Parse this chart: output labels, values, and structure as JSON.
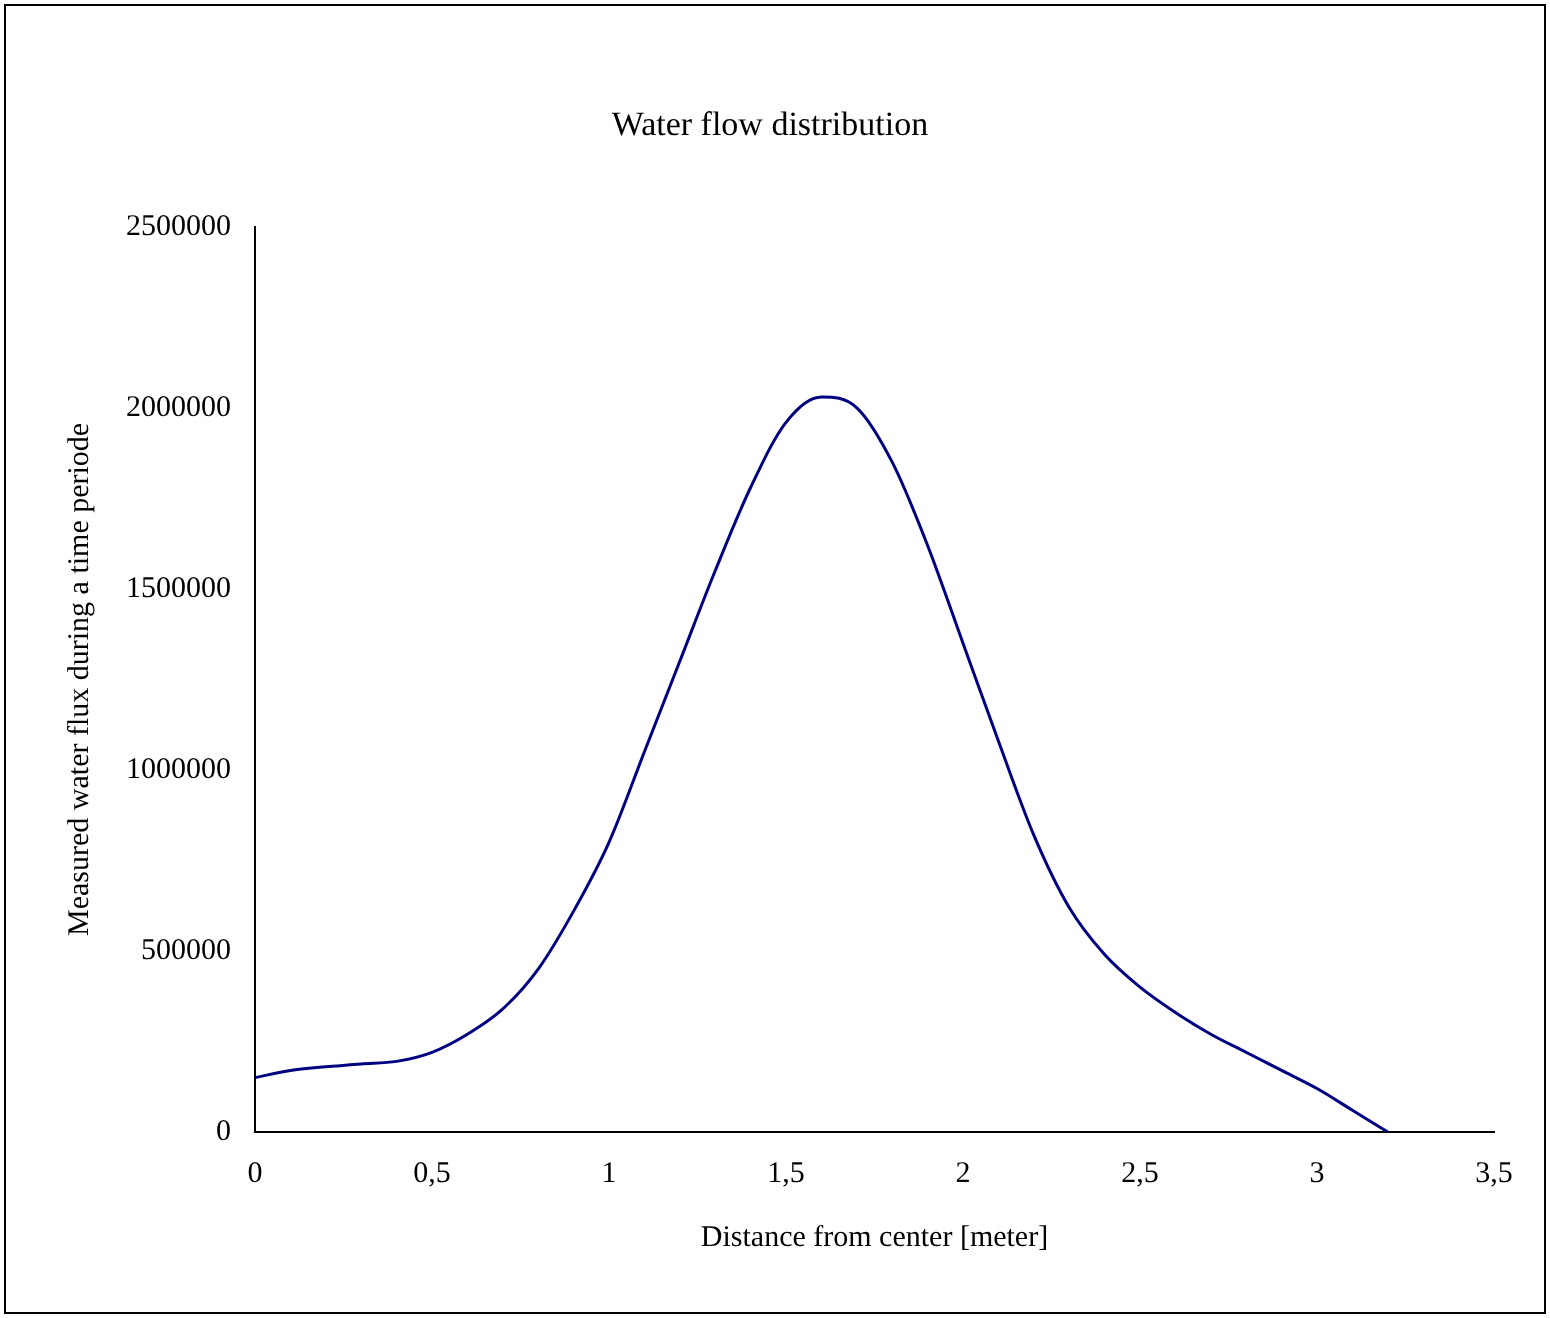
{
  "chart_data": {
    "type": "line",
    "title": "Water flow distribution",
    "xlabel": "Distance from center [meter]",
    "ylabel": "Measured water flux during a time periode",
    "x": [
      0,
      0.1,
      0.2,
      0.3,
      0.4,
      0.5,
      0.6,
      0.7,
      0.8,
      0.9,
      1.0,
      1.1,
      1.2,
      1.3,
      1.4,
      1.5,
      1.6,
      1.7,
      1.8,
      1.9,
      2.0,
      2.1,
      2.2,
      2.3,
      2.4,
      2.5,
      2.6,
      2.7,
      2.8,
      2.9,
      3.0,
      3.1,
      3.2
    ],
    "series": [
      {
        "color": "#000080",
        "values": [
          150000,
          170000,
          180000,
          188000,
          195000,
          220000,
          270000,
          340000,
          450000,
          610000,
          800000,
          1050000,
          1300000,
          1550000,
          1780000,
          1960000,
          2030000,
          2000000,
          1850000,
          1620000,
          1350000,
          1080000,
          820000,
          620000,
          490000,
          400000,
          330000,
          270000,
          220000,
          170000,
          120000,
          60000,
          0
        ]
      }
    ],
    "xlim": [
      0,
      3.5
    ],
    "xticks": [
      0,
      {
        "value": 0.5,
        "label": "0,5"
      },
      1,
      {
        "value": 1.5,
        "label": "1,5"
      },
      2,
      {
        "value": 2.5,
        "label": "2,5"
      },
      3,
      {
        "value": 3.5,
        "label": "3,5"
      }
    ],
    "ylim": [
      0,
      2500000
    ],
    "yticks": [
      0,
      500000,
      1000000,
      1500000,
      2000000,
      2500000
    ],
    "grid": false,
    "legend": false,
    "marker": "none",
    "line_style": "solid"
  }
}
